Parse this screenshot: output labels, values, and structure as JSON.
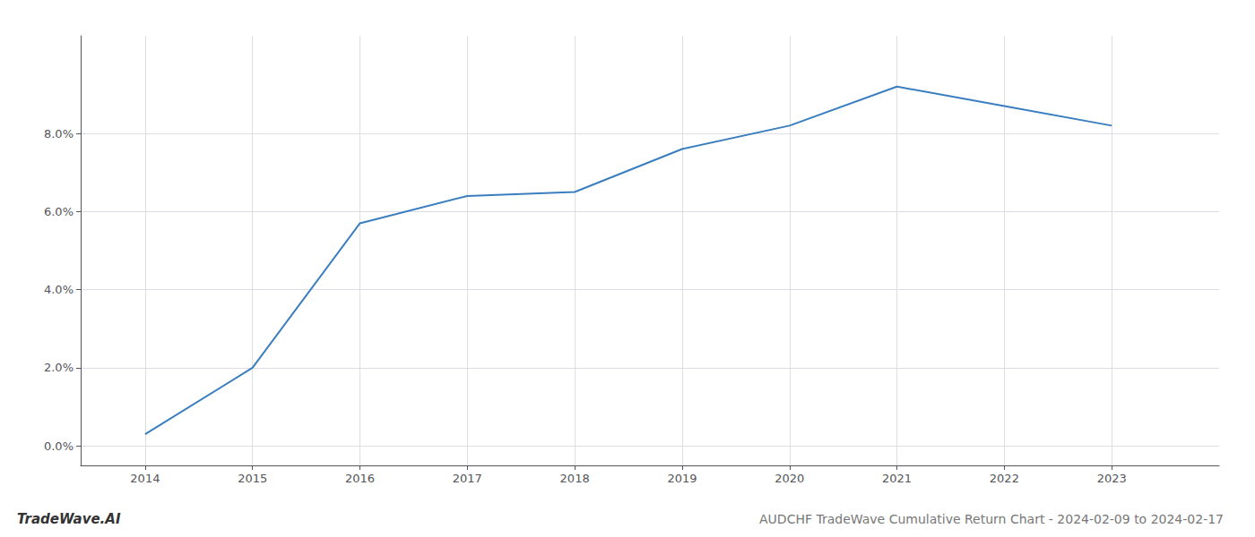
{
  "chart_data": {
    "type": "line",
    "title": "AUDCHF TradeWave Cumulative Return Chart - 2024-02-09 to 2024-02-17",
    "annotations": [
      "TradeWave.AI"
    ],
    "x": [
      2014,
      2015,
      2016,
      2017,
      2018,
      2019,
      2020,
      2021,
      2022,
      2023
    ],
    "values": [
      0.003,
      0.02,
      0.057,
      0.064,
      0.065,
      0.076,
      0.082,
      0.092,
      0.087,
      0.082
    ],
    "color": "#3a7ebf",
    "xlim": [
      2013.4,
      2024.0
    ],
    "xticks": [
      2014,
      2015,
      2016,
      2017,
      2018,
      2019,
      2020,
      2021,
      2022,
      2023
    ],
    "ylim": [
      -0.005,
      0.105
    ],
    "yticks": [
      {
        "value": 0.0,
        "label": "0.0%"
      },
      {
        "value": 0.02,
        "label": "2.0%"
      },
      {
        "value": 0.04,
        "label": "4.0%"
      },
      {
        "value": 0.06,
        "label": "6.0%"
      },
      {
        "value": 0.08,
        "label": "8.0%"
      }
    ],
    "grid": true
  }
}
